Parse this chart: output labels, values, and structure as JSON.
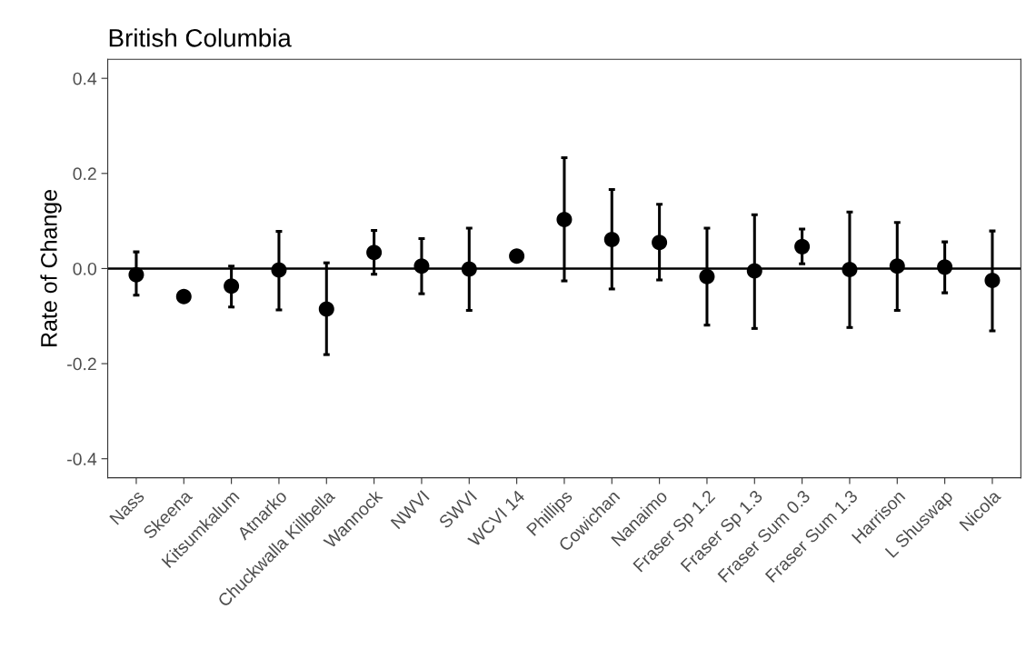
{
  "chart_data": {
    "type": "scatter",
    "title": "British Columbia",
    "ylabel": "Rate of Change",
    "categories": [
      "Nass",
      "Skeena",
      "Kitsumkalum",
      "Atnarko",
      "Chuckwalla Killbella",
      "Wannock",
      "NWVI",
      "SWVI",
      "WCVI 14",
      "Phillips",
      "Cowichan",
      "Nanaimo",
      "Fraser Sp 1.2",
      "Fraser Sp 1.3",
      "Fraser Sum 0.3",
      "Fraser Sum 1.3",
      "Harrison",
      "L Shuswap",
      "Nicola"
    ],
    "values": [
      -0.013,
      -0.059,
      -0.037,
      -0.003,
      -0.085,
      0.034,
      0.005,
      -0.001,
      0.026,
      0.103,
      0.061,
      0.055,
      -0.017,
      -0.005,
      0.046,
      -0.002,
      0.005,
      0.003,
      -0.025
    ],
    "errors": [
      [
        -0.056,
        0.035
      ],
      null,
      [
        -0.081,
        0.005
      ],
      [
        -0.087,
        0.078
      ],
      [
        -0.181,
        0.012
      ],
      [
        -0.012,
        0.08
      ],
      [
        -0.053,
        0.063
      ],
      [
        -0.088,
        0.085
      ],
      null,
      [
        -0.026,
        0.233
      ],
      [
        -0.043,
        0.166
      ],
      [
        -0.024,
        0.135
      ],
      [
        -0.119,
        0.085
      ],
      [
        -0.126,
        0.113
      ],
      [
        0.01,
        0.083
      ],
      [
        -0.124,
        0.119
      ],
      [
        -0.088,
        0.097
      ],
      [
        -0.051,
        0.056
      ],
      [
        -0.131,
        0.079
      ]
    ],
    "color": "#000000",
    "marker": "circle",
    "ylim": [
      -0.44,
      0.44
    ],
    "yticks": [
      {
        "value": -0.4,
        "label": "-0.4"
      },
      {
        "value": -0.2,
        "label": "-0.2"
      },
      {
        "value": 0.0,
        "label": "0.0"
      },
      {
        "value": 0.2,
        "label": "0.2"
      },
      {
        "value": 0.4,
        "label": "0.4"
      }
    ],
    "ref_lines": [
      {
        "axis": "y",
        "value": 0,
        "label": null,
        "color": "#000000"
      }
    ],
    "grid": false
  }
}
